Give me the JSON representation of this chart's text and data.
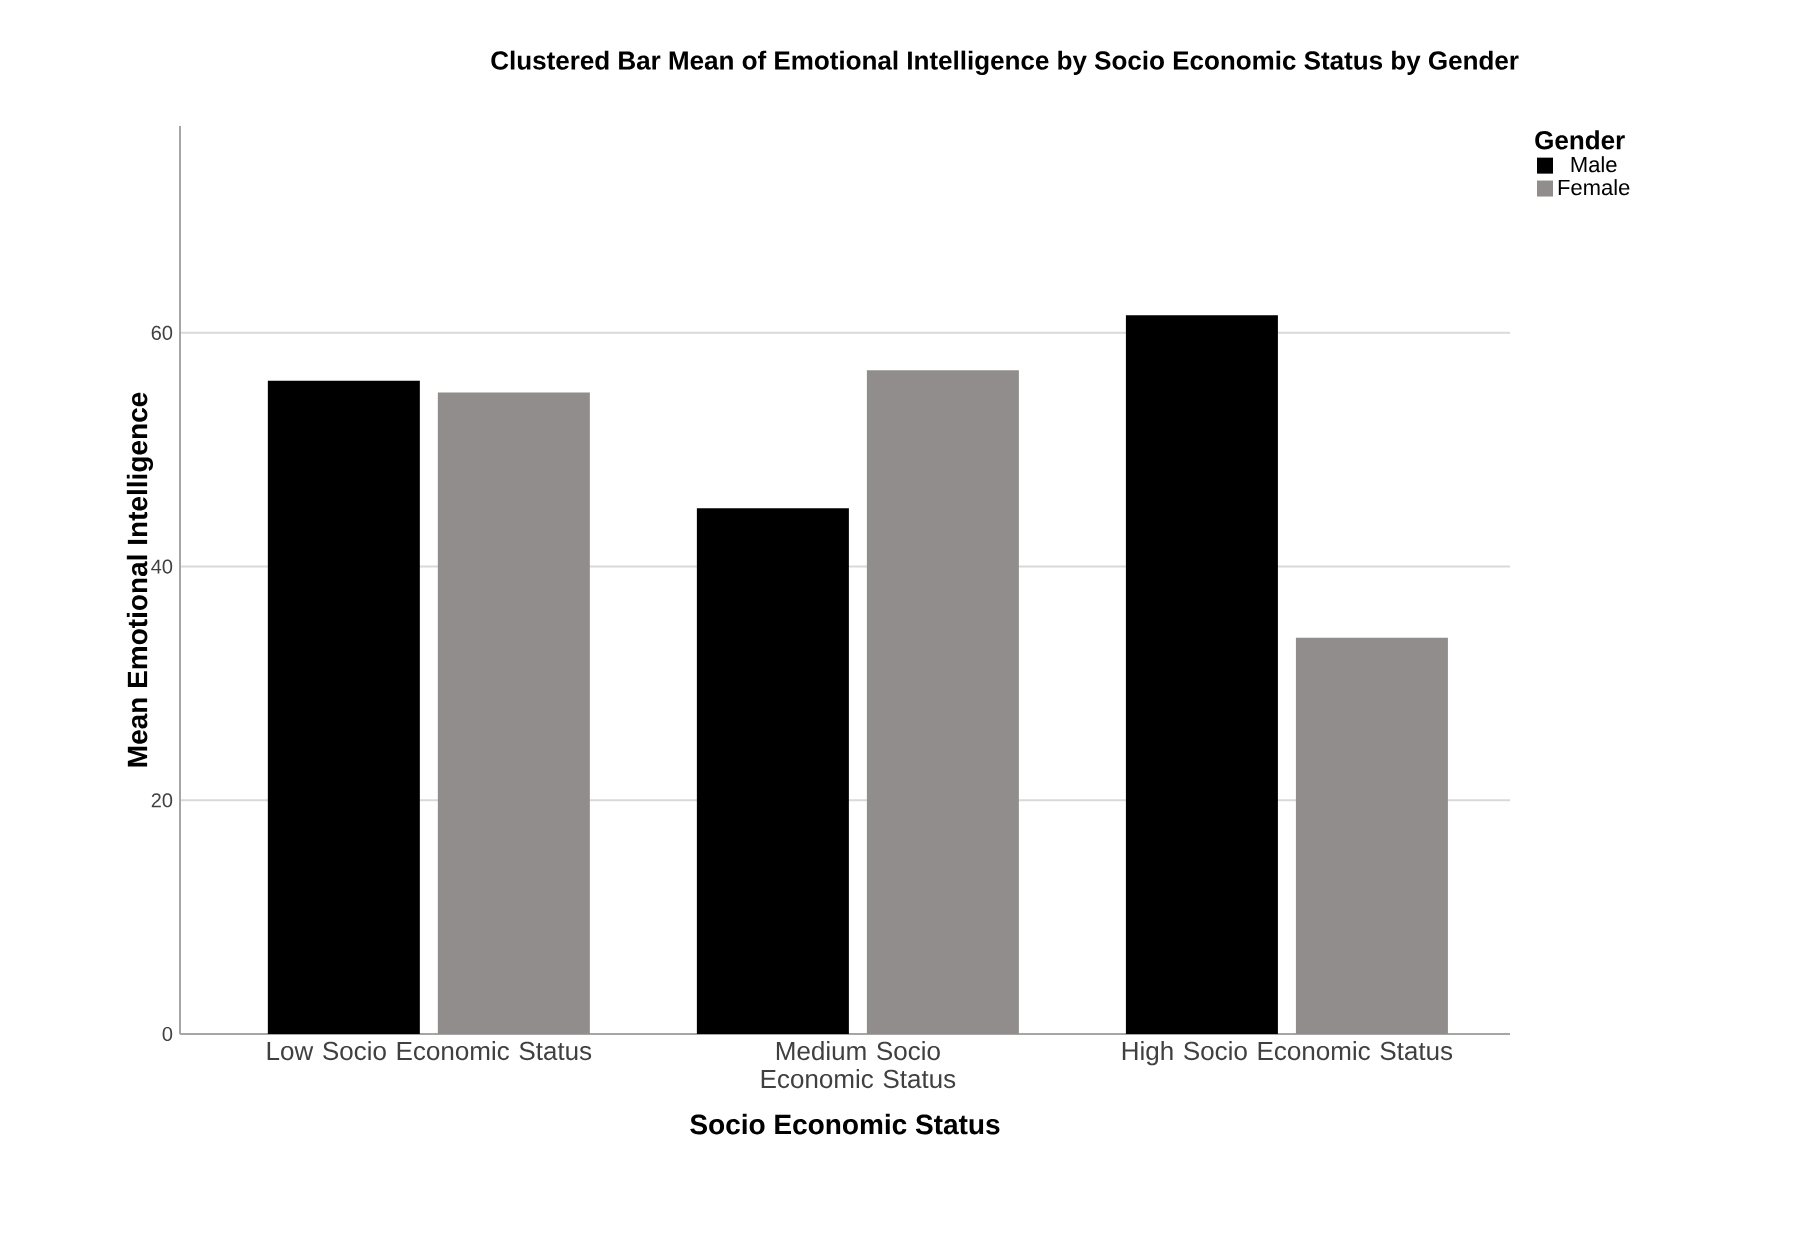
{
  "chart_data": {
    "type": "bar",
    "title": "Clustered Bar Mean of Emotional Intelligence  by Socio Economic Status  by Gender",
    "xlabel": "Socio Economic Status",
    "ylabel": "Mean Emotional  Intelligence",
    "legend_title": "Gender",
    "categories": [
      "Low Socio Economic Status",
      "Medium Socio Economic Status",
      "High Socio Economic Status"
    ],
    "series": [
      {
        "name": "Male",
        "color": "#000000",
        "values": [
          55.9,
          45.0,
          61.5
        ]
      },
      {
        "name": "Female",
        "color": "#918d8c",
        "values": [
          54.9,
          56.8,
          33.9
        ]
      }
    ],
    "ylim": [
      0,
      77.7
    ],
    "yticks": [
      0,
      20,
      40,
      60
    ],
    "grid": "y",
    "legend": "top right"
  }
}
